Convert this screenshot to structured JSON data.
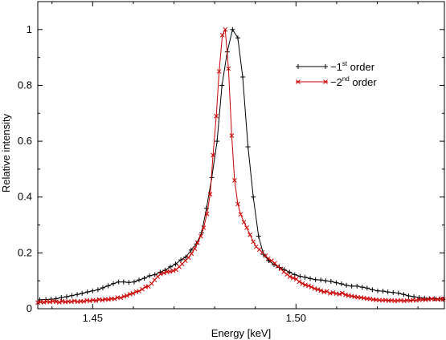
{
  "chart_data": {
    "type": "line",
    "xlabel": "Energy [keV]",
    "ylabel": "Relative intensity",
    "xlim": [
      1.4365,
      1.5365
    ],
    "ylim": [
      0,
      1.1
    ],
    "x_ticks": [
      1.45,
      1.5
    ],
    "x_tick_labels": [
      "1.45",
      "1.50"
    ],
    "y_ticks": [
      0,
      0.2,
      0.4,
      0.6,
      0.8,
      1.0
    ],
    "y_tick_labels": [
      "0",
      "0.2",
      "0.4",
      "0.6",
      "0.8",
      "1"
    ],
    "grid": false,
    "legend_position": "top-right",
    "series": [
      {
        "name_main": "−1",
        "name_sup": "st",
        "name_tail": " order",
        "color": "#000000",
        "marker": "plus",
        "x": [
          1.437,
          1.4385,
          1.4398,
          1.441,
          1.4423,
          1.4436,
          1.4449,
          1.4462,
          1.4474,
          1.4487,
          1.45,
          1.4513,
          1.4525,
          1.4538,
          1.4551,
          1.4564,
          1.4576,
          1.4589,
          1.4602,
          1.4614,
          1.4627,
          1.464,
          1.4653,
          1.4666,
          1.4678,
          1.4691,
          1.4704,
          1.4717,
          1.4729,
          1.4742,
          1.4755,
          1.4768,
          1.478,
          1.4793,
          1.4806,
          1.4818,
          1.4831,
          1.4844,
          1.4857,
          1.4869,
          1.4882,
          1.4895,
          1.4908,
          1.492,
          1.4933,
          1.4946,
          1.4959,
          1.4971,
          1.4984,
          1.4997,
          1.501,
          1.5022,
          1.5035,
          1.5048,
          1.5061,
          1.5073,
          1.5086,
          1.5099,
          1.5112,
          1.5124,
          1.5137,
          1.515,
          1.5163,
          1.5175,
          1.5188,
          1.5201,
          1.5214,
          1.5226,
          1.5239,
          1.5252,
          1.5265,
          1.5277,
          1.529,
          1.5303,
          1.5316,
          1.5328,
          1.5341,
          1.5354,
          1.5362
        ],
        "y": [
          0.032,
          0.033,
          0.034,
          0.036,
          0.04,
          0.043,
          0.047,
          0.051,
          0.055,
          0.06,
          0.064,
          0.068,
          0.075,
          0.082,
          0.09,
          0.096,
          0.096,
          0.094,
          0.096,
          0.103,
          0.109,
          0.118,
          0.122,
          0.131,
          0.138,
          0.15,
          0.16,
          0.175,
          0.185,
          0.21,
          0.232,
          0.272,
          0.36,
          0.47,
          0.6,
          0.8,
          0.92,
          1.0,
          0.97,
          0.83,
          0.58,
          0.4,
          0.26,
          0.195,
          0.172,
          0.158,
          0.148,
          0.14,
          0.131,
          0.122,
          0.116,
          0.113,
          0.108,
          0.104,
          0.103,
          0.1,
          0.098,
          0.093,
          0.089,
          0.084,
          0.081,
          0.081,
          0.077,
          0.074,
          0.068,
          0.064,
          0.063,
          0.06,
          0.058,
          0.056,
          0.051,
          0.046,
          0.043,
          0.04,
          0.038,
          0.036,
          0.036,
          0.035,
          0.034
        ]
      },
      {
        "name_main": "−2",
        "name_sup": "nd",
        "name_tail": " order",
        "color": "#cc0000",
        "marker": "x",
        "x": [
          1.4365,
          1.4372,
          1.438,
          1.4387,
          1.4395,
          1.4402,
          1.441,
          1.4418,
          1.4425,
          1.4433,
          1.444,
          1.4448,
          1.4455,
          1.4463,
          1.4471,
          1.4478,
          1.4486,
          1.4493,
          1.4501,
          1.4508,
          1.4516,
          1.4524,
          1.4531,
          1.4539,
          1.4546,
          1.4554,
          1.4561,
          1.4569,
          1.4577,
          1.4584,
          1.4592,
          1.4599,
          1.4607,
          1.4614,
          1.4622,
          1.463,
          1.4637,
          1.4645,
          1.4652,
          1.466,
          1.4667,
          1.4675,
          1.4683,
          1.469,
          1.4698,
          1.4705,
          1.4713,
          1.472,
          1.4728,
          1.4736,
          1.4743,
          1.4751,
          1.4758,
          1.4766,
          1.4773,
          1.4781,
          1.4789,
          1.4796,
          1.4804,
          1.4811,
          1.4819,
          1.4826,
          1.4834,
          1.4842,
          1.4849,
          1.4857,
          1.4864,
          1.4872,
          1.4879,
          1.4887,
          1.4895,
          1.4902,
          1.491,
          1.4917,
          1.4925,
          1.4932,
          1.494,
          1.4948,
          1.4955,
          1.4963,
          1.497,
          1.4978,
          1.4985,
          1.4993,
          1.5001,
          1.5008,
          1.5016,
          1.5023,
          1.5031,
          1.5038,
          1.5046,
          1.5054,
          1.5061,
          1.5069,
          1.5076,
          1.5084,
          1.5091,
          1.5099,
          1.5107,
          1.5114,
          1.5122,
          1.5129,
          1.5137,
          1.5144,
          1.5152,
          1.516,
          1.5167,
          1.5175,
          1.5182,
          1.519,
          1.5197,
          1.5205,
          1.5213,
          1.522,
          1.5228,
          1.5235,
          1.5243,
          1.525,
          1.5258,
          1.5266,
          1.5273,
          1.5281,
          1.5288,
          1.5296,
          1.5303,
          1.5311,
          1.5319,
          1.5326,
          1.5334,
          1.5341,
          1.5349,
          1.5356,
          1.5362
        ],
        "y": [
          0.022,
          0.024,
          0.023,
          0.026,
          0.024,
          0.027,
          0.025,
          0.023,
          0.027,
          0.024,
          0.026,
          0.025,
          0.028,
          0.025,
          0.027,
          0.026,
          0.03,
          0.028,
          0.031,
          0.029,
          0.033,
          0.031,
          0.034,
          0.033,
          0.036,
          0.035,
          0.04,
          0.039,
          0.044,
          0.047,
          0.052,
          0.055,
          0.061,
          0.063,
          0.07,
          0.078,
          0.08,
          0.09,
          0.103,
          0.115,
          0.124,
          0.128,
          0.132,
          0.133,
          0.136,
          0.14,
          0.15,
          0.16,
          0.172,
          0.183,
          0.197,
          0.215,
          0.237,
          0.26,
          0.29,
          0.34,
          0.41,
          0.55,
          0.69,
          0.85,
          0.98,
          1.0,
          0.86,
          0.62,
          0.46,
          0.375,
          0.338,
          0.31,
          0.29,
          0.265,
          0.24,
          0.222,
          0.212,
          0.202,
          0.19,
          0.18,
          0.172,
          0.163,
          0.152,
          0.143,
          0.132,
          0.123,
          0.115,
          0.11,
          0.106,
          0.097,
          0.09,
          0.085,
          0.082,
          0.078,
          0.072,
          0.069,
          0.065,
          0.06,
          0.062,
          0.055,
          0.058,
          0.054,
          0.052,
          0.056,
          0.05,
          0.047,
          0.045,
          0.043,
          0.041,
          0.04,
          0.038,
          0.036,
          0.035,
          0.033,
          0.032,
          0.031,
          0.03,
          0.031,
          0.029,
          0.03,
          0.028,
          0.029,
          0.03,
          0.028,
          0.03,
          0.029,
          0.031,
          0.03,
          0.032,
          0.033,
          0.032,
          0.034,
          0.035,
          0.034,
          0.033,
          0.035,
          0.034
        ]
      }
    ]
  }
}
